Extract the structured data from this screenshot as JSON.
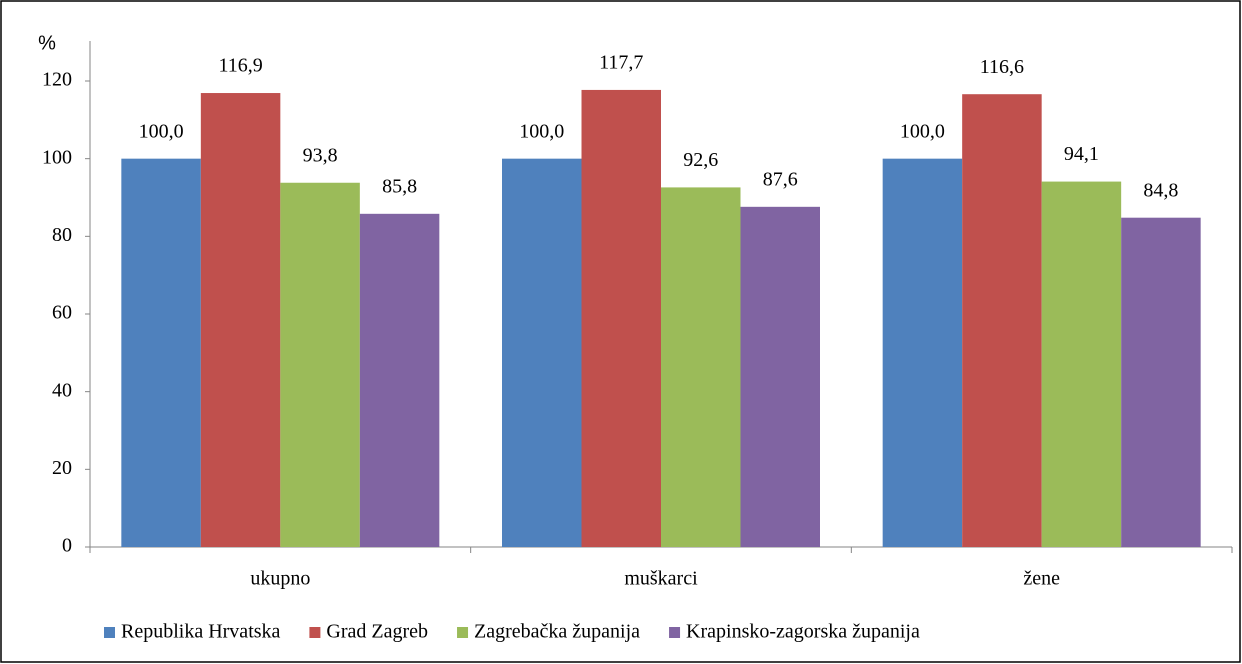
{
  "chart_data": {
    "type": "bar",
    "y_label": "%",
    "categories": [
      "ukupno",
      "muškarci",
      "žene"
    ],
    "series": [
      {
        "name": "Republika Hrvatska",
        "color": "#4f81bd",
        "values": [
          100.0,
          100.0,
          100.0
        ],
        "value_labels": [
          "100,0",
          "100,0",
          "100,0"
        ]
      },
      {
        "name": "Grad Zagreb",
        "color": "#c0504d",
        "values": [
          116.9,
          117.7,
          116.6
        ],
        "value_labels": [
          "116,9",
          "117,7",
          "116,6"
        ]
      },
      {
        "name": "Zagrebačka županija",
        "color": "#9bbb59",
        "values": [
          93.8,
          92.6,
          94.1
        ],
        "value_labels": [
          "93,8",
          "92,6",
          "94,1"
        ]
      },
      {
        "name": "Krapinsko-zagorska županija",
        "color": "#8064a2",
        "values": [
          85.8,
          87.6,
          84.8
        ],
        "value_labels": [
          "85,8",
          "87,6",
          "84,8"
        ]
      }
    ],
    "ylim": [
      0,
      120
    ],
    "yticks": [
      0,
      20,
      40,
      60,
      80,
      100,
      120
    ],
    "grid": false,
    "legend": "bottom"
  }
}
